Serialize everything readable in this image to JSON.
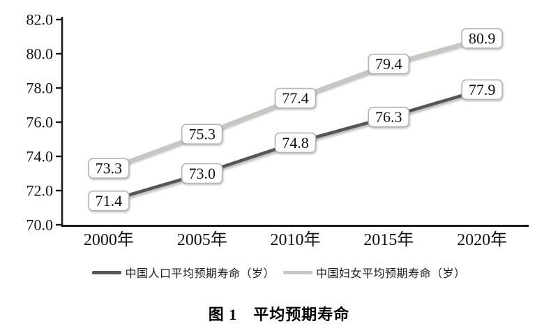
{
  "figure": {
    "caption": "图 1　平均预期寿命"
  },
  "legend": {
    "items": [
      {
        "label": "中国人口平均预期寿命（岁）",
        "color": "#54565a"
      },
      {
        "label": "中国妇女平均预期寿命（岁）",
        "color": "#c8c5c5"
      }
    ]
  },
  "chart_data": {
    "type": "line",
    "categories": [
      "2000年",
      "2005年",
      "2010年",
      "2015年",
      "2020年"
    ],
    "series": [
      {
        "name": "中国人口平均预期寿命（岁）",
        "color": "#54565a",
        "values": [
          71.4,
          73.0,
          74.8,
          76.3,
          77.9
        ]
      },
      {
        "name": "中国妇女平均预期寿命（岁）",
        "color": "#c8c5c5",
        "values": [
          73.3,
          75.3,
          77.4,
          79.4,
          80.9
        ]
      }
    ],
    "title": "图 1　平均预期寿命",
    "xlabel": "",
    "ylabel": "",
    "ylim": [
      70.0,
      82.0
    ],
    "ytick_step": 2.0,
    "ytick_labels": [
      "70.0",
      "72.0",
      "74.0",
      "76.0",
      "78.0",
      "80.0",
      "82.0"
    ],
    "grid": false,
    "data_labels": true,
    "data_label_format": "one_decimal",
    "legend_position": "bottom"
  },
  "style": {
    "axis_color": "#1a1a1a",
    "label_box_fill": "#ffffff",
    "label_box_border": "#b5b2b2",
    "text_color": "#111111"
  }
}
